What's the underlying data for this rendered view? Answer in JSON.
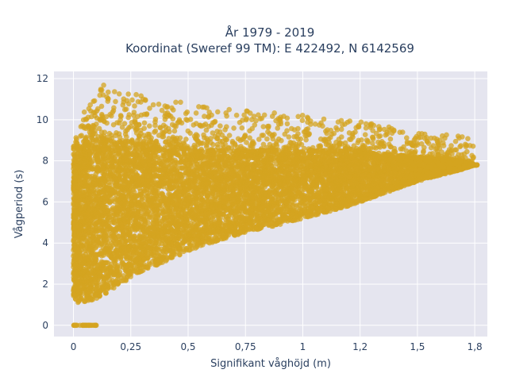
{
  "chart_data": {
    "type": "scatter",
    "title_line1": "År 1979 - 2019",
    "title_line2": "Koordinat (Sweref 99 TM): E 422492, N 6142569",
    "xlabel": "Signifikant våghöjd (m)",
    "ylabel": "Vågperiod (s)",
    "xlim": [
      -0.085,
      1.805
    ],
    "ylim": [
      -0.55,
      12.35
    ],
    "xticks": [
      0,
      0.25,
      0.5,
      0.75,
      1,
      1.25,
      1.5,
      1.75
    ],
    "xtick_labels": [
      "0",
      "0,25",
      "0,5",
      "0,75",
      "1",
      "1,2",
      "1,5",
      "1,8"
    ],
    "yticks": [
      0,
      2,
      4,
      6,
      8,
      10,
      12
    ],
    "ytick_labels": [
      "0",
      "2",
      "4",
      "6",
      "8",
      "10",
      "12"
    ],
    "grid": true,
    "legend": "none",
    "colors": {
      "marker": "#d4a420",
      "plot_bg": "#e5e5ef",
      "grid": "#ffffff",
      "text": "#2a3f5f"
    },
    "envelope": {
      "x": [
        0.0,
        0.02,
        0.05,
        0.1,
        0.15,
        0.2,
        0.25,
        0.3,
        0.4,
        0.5,
        0.6,
        0.75,
        0.9,
        1.0,
        1.1,
        1.2,
        1.3,
        1.4,
        1.5,
        1.6,
        1.7,
        1.75
      ],
      "y_min": [
        1.3,
        1.1,
        1.1,
        1.3,
        1.6,
        2.0,
        2.3,
        2.6,
        3.1,
        3.6,
        4.0,
        4.5,
        4.9,
        5.2,
        5.5,
        5.8,
        6.2,
        6.6,
        7.0,
        7.3,
        7.6,
        7.8
      ],
      "y_max": [
        8.8,
        9.5,
        10.5,
        11.4,
        11.9,
        11.7,
        11.3,
        11.2,
        11.0,
        10.8,
        10.6,
        10.5,
        10.4,
        10.3,
        10.1,
        10.0,
        9.8,
        9.6,
        9.5,
        9.3,
        9.2,
        9.0
      ],
      "y_dense_max": [
        7.6,
        8.3,
        8.8,
        9.0,
        9.0,
        9.0,
        8.9,
        8.8,
        8.7,
        8.6,
        8.5,
        8.5,
        8.5,
        8.5,
        8.5,
        8.5,
        8.4,
        8.3,
        8.2,
        8.1,
        8.0,
        7.8
      ]
    },
    "zero_period_points": {
      "x_range": [
        0.0,
        0.1
      ],
      "y": 0
    },
    "n_points": 9000
  }
}
